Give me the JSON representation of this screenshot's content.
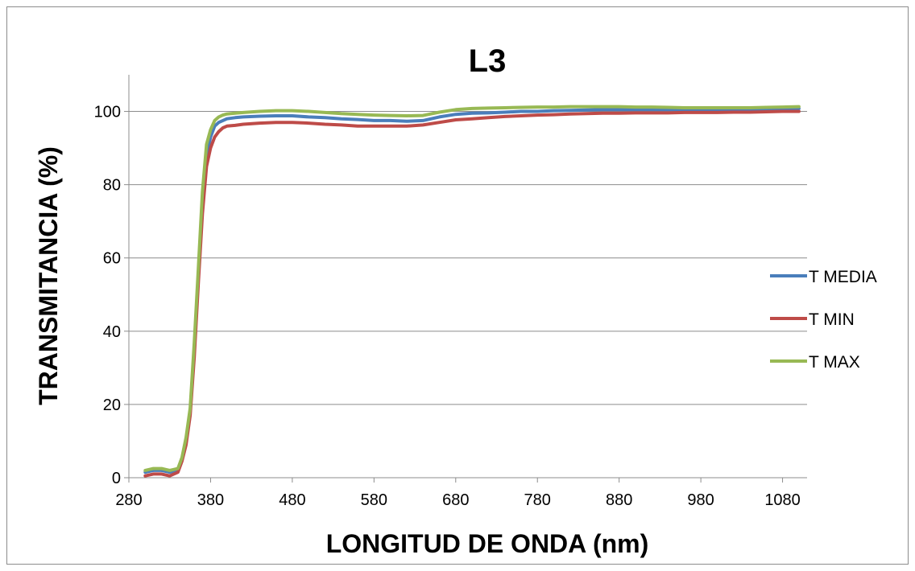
{
  "chart_data": {
    "type": "line",
    "title": "L3",
    "xlabel": "LONGITUD DE ONDA (nm)",
    "ylabel": "TRANSMITANCIA (%)",
    "xlim": [
      280,
      1110
    ],
    "ylim": [
      0,
      110
    ],
    "xticks": [
      280,
      380,
      480,
      580,
      680,
      780,
      880,
      980,
      1080
    ],
    "yticks": [
      0,
      20,
      40,
      60,
      80,
      100
    ],
    "grid": "horizontal",
    "legend_position": "right",
    "series": [
      {
        "name": "T MEDIA",
        "color": "#4a7ebb",
        "x": [
          300,
          310,
          320,
          330,
          340,
          345,
          350,
          355,
          360,
          365,
          370,
          375,
          380,
          385,
          390,
          395,
          400,
          410,
          420,
          440,
          460,
          480,
          500,
          520,
          540,
          560,
          580,
          600,
          620,
          640,
          660,
          680,
          700,
          720,
          740,
          760,
          780,
          800,
          820,
          840,
          860,
          880,
          900,
          920,
          940,
          960,
          980,
          1000,
          1020,
          1040,
          1060,
          1080,
          1100
        ],
        "y": [
          1.5,
          2.0,
          2.0,
          1.5,
          2.0,
          5.0,
          10,
          18,
          35,
          55,
          75,
          88,
          93,
          96,
          97,
          97.5,
          98,
          98.3,
          98.5,
          98.7,
          98.8,
          98.8,
          98.5,
          98.3,
          98.0,
          97.8,
          97.5,
          97.5,
          97.3,
          97.5,
          98.5,
          99.2,
          99.5,
          99.6,
          99.8,
          100.0,
          100.0,
          100.2,
          100.3,
          100.4,
          100.5,
          100.5,
          100.5,
          100.5,
          100.5,
          100.5,
          100.5,
          100.5,
          100.5,
          100.6,
          100.6,
          100.7,
          100.8
        ]
      },
      {
        "name": "T MIN",
        "color": "#be4b48",
        "x": [
          300,
          310,
          320,
          330,
          340,
          345,
          350,
          355,
          360,
          365,
          370,
          375,
          380,
          385,
          390,
          395,
          400,
          410,
          420,
          440,
          460,
          480,
          500,
          520,
          540,
          560,
          580,
          600,
          620,
          640,
          660,
          680,
          700,
          720,
          740,
          760,
          780,
          800,
          820,
          840,
          860,
          880,
          900,
          920,
          940,
          960,
          980,
          1000,
          1020,
          1040,
          1060,
          1080,
          1100
        ],
        "y": [
          0.5,
          1.0,
          1.0,
          0.5,
          1.5,
          4.5,
          9,
          17,
          33,
          53,
          72,
          85,
          90,
          93,
          94.5,
          95.5,
          96,
          96.2,
          96.5,
          96.8,
          97.0,
          97.0,
          96.8,
          96.5,
          96.3,
          96.0,
          96.0,
          96.0,
          96.0,
          96.3,
          97.0,
          97.7,
          98.0,
          98.3,
          98.6,
          98.8,
          99.0,
          99.1,
          99.3,
          99.4,
          99.5,
          99.5,
          99.6,
          99.6,
          99.6,
          99.7,
          99.7,
          99.7,
          99.8,
          99.8,
          99.9,
          100.0,
          100.0
        ]
      },
      {
        "name": "T MAX",
        "color": "#98b954",
        "x": [
          300,
          310,
          320,
          330,
          340,
          345,
          350,
          355,
          360,
          365,
          370,
          375,
          380,
          385,
          390,
          395,
          400,
          410,
          420,
          440,
          460,
          480,
          500,
          520,
          540,
          560,
          580,
          600,
          620,
          640,
          660,
          680,
          700,
          720,
          740,
          760,
          780,
          800,
          820,
          840,
          860,
          880,
          900,
          920,
          940,
          960,
          980,
          1000,
          1020,
          1040,
          1060,
          1080,
          1100
        ],
        "y": [
          2.0,
          2.5,
          2.5,
          2.0,
          2.5,
          5.5,
          11,
          19,
          37,
          57,
          78,
          91,
          95,
          97.5,
          98.5,
          99,
          99.3,
          99.5,
          99.7,
          100.0,
          100.2,
          100.2,
          100.0,
          99.7,
          99.4,
          99.2,
          99.0,
          98.9,
          98.8,
          98.9,
          99.8,
          100.5,
          100.8,
          100.9,
          101.0,
          101.1,
          101.2,
          101.2,
          101.3,
          101.3,
          101.3,
          101.3,
          101.2,
          101.2,
          101.1,
          101.0,
          101.0,
          101.0,
          101.0,
          101.0,
          101.1,
          101.2,
          101.3
        ]
      }
    ]
  }
}
